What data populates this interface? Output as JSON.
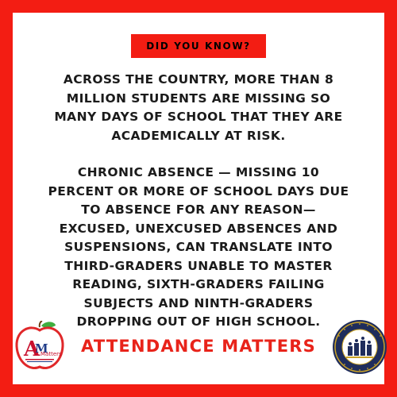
{
  "badge": {
    "label": "DID YOU KNOW?"
  },
  "paragraphs": [
    "ACROSS THE COUNTRY, MORE THAN 8\nMILLION STUDENTS ARE MISSING SO\nMANY DAYS OF SCHOOL THAT THEY ARE\nACADEMICALLY AT RISK.",
    "CHRONIC ABSENCE — MISSING 10\nPERCENT OR MORE OF SCHOOL DAYS DUE\nTO ABSENCE FOR ANY REASON—\nEXCUSED, UNEXCUSED ABSENCES AND\nSUSPENSIONS, CAN TRANSLATE INTO\nTHIRD-GRADERS UNABLE TO MASTER\nREADING, SIXTH-GRADERS FAILING\nSUBJECTS AND NINTH-GRADERS\nDROPPING OUT OF HIGH SCHOOL."
  ],
  "footer": {
    "title": "ATTENDANCE MATTERS"
  },
  "logos": {
    "left": {
      "icon": "apple-attendance-matters-logo",
      "text": "Matters"
    },
    "right": {
      "icon": "school-district-seal-logo"
    }
  },
  "colors": {
    "frame": "#f31d13",
    "badge": "#f31d13",
    "title": "#e8231a",
    "body_text": "#1b1b1b",
    "seal_navy": "#1f2d5c"
  }
}
